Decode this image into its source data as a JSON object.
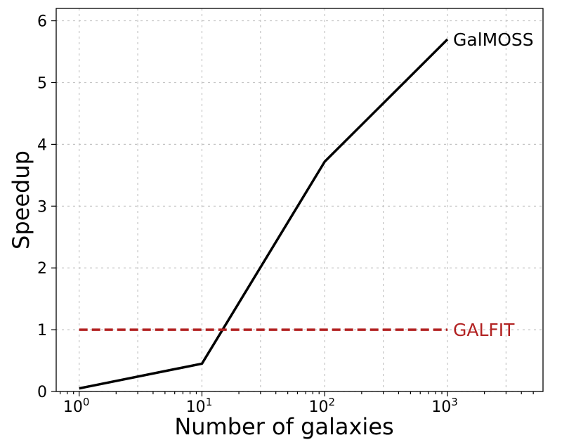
{
  "chart_data": {
    "type": "line",
    "xlabel": "Number of galaxies",
    "ylabel": "Speedup",
    "x_scale": "log",
    "xlim": [
      0.65,
      6000
    ],
    "ylim": [
      0,
      6.2
    ],
    "x_ticks": [
      {
        "value": 1,
        "base": "10",
        "exp": "0"
      },
      {
        "value": 10,
        "base": "10",
        "exp": "1"
      },
      {
        "value": 100,
        "base": "10",
        "exp": "2"
      },
      {
        "value": 1000,
        "base": "10",
        "exp": "3"
      }
    ],
    "y_ticks": [
      0,
      1,
      2,
      3,
      4,
      5,
      6
    ],
    "grid": true,
    "series": [
      {
        "name": "GalMOSS",
        "color": "#000000",
        "line_style": "solid",
        "x": [
          1,
          10,
          100,
          1000
        ],
        "y": [
          0.05,
          0.45,
          3.72,
          5.7
        ]
      },
      {
        "name": "GALFIT",
        "color": "#b22222",
        "line_style": "dashed",
        "x": [
          1,
          1000
        ],
        "y": [
          1.0,
          1.0
        ]
      }
    ]
  }
}
